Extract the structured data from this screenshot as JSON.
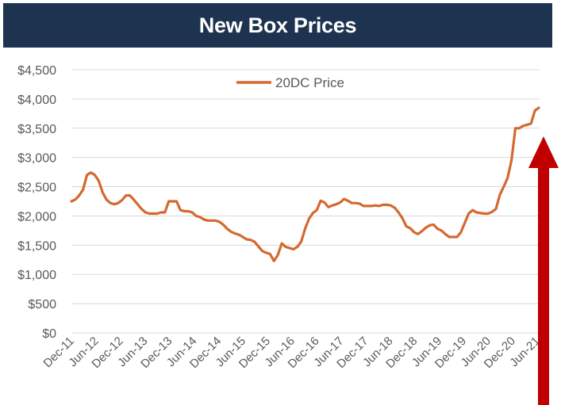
{
  "header": {
    "title": "New Box Prices"
  },
  "chart_data": {
    "type": "line",
    "title": "New Box Prices",
    "xlabel": "",
    "ylabel": "",
    "ylim": [
      0,
      4500
    ],
    "grid": true,
    "legend_position": "top-center",
    "y_ticks": [
      "$0",
      "$500",
      "$1,000",
      "$1,500",
      "$2,000",
      "$2,500",
      "$3,000",
      "$3,500",
      "$4,000",
      "$4,500"
    ],
    "x_ticks": [
      "Dec-11",
      "Jun-12",
      "Dec-12",
      "Jun-13",
      "Dec-13",
      "Jun-14",
      "Dec-14",
      "Jun-15",
      "Dec-15",
      "Jun-16",
      "Dec-16",
      "Jun-17",
      "Dec-17",
      "Jun-18",
      "Dec-18",
      "Jun-19",
      "Dec-19",
      "Jun-20",
      "Dec-20",
      "Jun-21"
    ],
    "series": [
      {
        "name": "20DC Price",
        "color": "#d4692f",
        "values": [
          2250,
          2280,
          2350,
          2450,
          2700,
          2740,
          2700,
          2600,
          2400,
          2280,
          2220,
          2200,
          2220,
          2270,
          2350,
          2350,
          2280,
          2200,
          2120,
          2060,
          2040,
          2040,
          2040,
          2060,
          2060,
          2250,
          2250,
          2250,
          2100,
          2080,
          2080,
          2060,
          2000,
          1980,
          1940,
          1920,
          1920,
          1920,
          1900,
          1850,
          1780,
          1730,
          1700,
          1680,
          1640,
          1600,
          1590,
          1560,
          1480,
          1400,
          1370,
          1350,
          1230,
          1330,
          1530,
          1470,
          1450,
          1430,
          1470,
          1560,
          1780,
          1950,
          2050,
          2100,
          2260,
          2230,
          2150,
          2180,
          2200,
          2230,
          2290,
          2260,
          2220,
          2220,
          2210,
          2170,
          2170,
          2170,
          2180,
          2170,
          2190,
          2190,
          2180,
          2140,
          2060,
          1960,
          1820,
          1790,
          1720,
          1690,
          1740,
          1800,
          1840,
          1850,
          1780,
          1750,
          1690,
          1640,
          1640,
          1640,
          1720,
          1880,
          2040,
          2100,
          2060,
          2050,
          2040,
          2040,
          2070,
          2120,
          2360,
          2500,
          2650,
          2950,
          3500,
          3500,
          3540,
          3560,
          3580,
          3800,
          3850
        ]
      }
    ]
  },
  "colors": {
    "header_bg": "#1d3350",
    "line": "#d4692f",
    "arrow": "#c00000",
    "grid": "#d9d9d9",
    "tick_text": "#595959"
  }
}
